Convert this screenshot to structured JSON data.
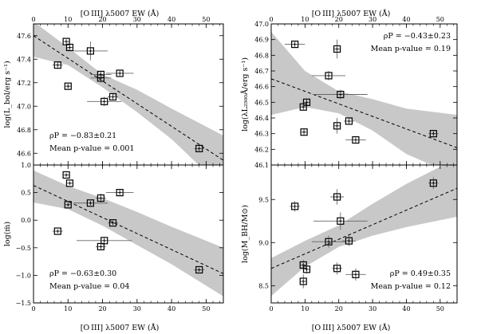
{
  "figure": {
    "top_xlabel": "[O III] λ5007 EW (Å)",
    "bottom_xlabel": "[O III] λ5007 EW (Å)"
  },
  "chart_data": [
    {
      "type": "scatter",
      "panel": "top-left",
      "ylabel": "log(L_bol/erg s⁻¹)",
      "xlim": [
        0,
        55
      ],
      "ylim": [
        46.5,
        47.7
      ],
      "xticks": [
        0,
        10,
        20,
        30,
        40,
        50
      ],
      "yticks": [
        46.6,
        46.8,
        47.0,
        47.2,
        47.4,
        47.6
      ],
      "ytick_labels": [
        "46.6",
        "46.8",
        "47.0",
        "47.2",
        "47.4",
        "47.6"
      ],
      "points": [
        {
          "x": 7,
          "y": 47.35,
          "xerr": 1.5,
          "yerr": 0.03
        },
        {
          "x": 9.5,
          "y": 47.55,
          "xerr": 1,
          "yerr": 0.02
        },
        {
          "x": 10.5,
          "y": 47.5,
          "xerr": 1,
          "yerr": 0.02
        },
        {
          "x": 10,
          "y": 47.17,
          "xerr": 1,
          "yerr": 0.02
        },
        {
          "x": 16.5,
          "y": 47.47,
          "xerr": 5,
          "yerr": 0.08
        },
        {
          "x": 19.5,
          "y": 47.24,
          "xerr": 3,
          "yerr": 0.04
        },
        {
          "x": 19.5,
          "y": 47.27,
          "xerr": 3,
          "yerr": 0.03
        },
        {
          "x": 20.5,
          "y": 47.04,
          "xerr": 5,
          "yerr": 0.04
        },
        {
          "x": 23,
          "y": 47.08,
          "xerr": 1.5,
          "yerr": 0.03
        },
        {
          "x": 25,
          "y": 47.28,
          "xerr": 4,
          "yerr": 0.03
        },
        {
          "x": 48,
          "y": 46.64,
          "xerr": 1.5,
          "yerr": 0.03
        }
      ],
      "fit": {
        "x": [
          0,
          55
        ],
        "y": [
          47.6,
          46.54
        ]
      },
      "band_upper": [
        [
          0,
          47.72
        ],
        [
          10,
          47.5
        ],
        [
          20,
          47.27
        ],
        [
          30,
          47.14
        ],
        [
          40,
          46.98
        ],
        [
          55,
          46.75
        ]
      ],
      "band_lower": [
        [
          0,
          47.42
        ],
        [
          10,
          47.35
        ],
        [
          20,
          47.16
        ],
        [
          30,
          46.95
        ],
        [
          40,
          46.72
        ],
        [
          55,
          46.3
        ]
      ],
      "annotation_rho": "ρP = −0.83±0.21",
      "annotation_p": "Mean p-value = 0.001",
      "annotation_pos": "bottom-left"
    },
    {
      "type": "scatter",
      "panel": "top-right",
      "ylabel": "log(λL₂₅₀₀Å/erg s⁻¹)",
      "xlim": [
        0,
        55
      ],
      "ylim": [
        46.1,
        47.0
      ],
      "xticks": [
        0,
        10,
        20,
        30,
        40,
        50
      ],
      "yticks": [
        46.1,
        46.2,
        46.3,
        46.4,
        46.5,
        46.6,
        46.7,
        46.8,
        46.9,
        47.0
      ],
      "ytick_labels": [
        "46.1",
        "46.2",
        "46.3",
        "46.4",
        "46.5",
        "46.6",
        "46.7",
        "46.8",
        "46.9",
        "47.0"
      ],
      "points": [
        {
          "x": 7,
          "y": 46.87,
          "xerr": 3,
          "yerr": 0.02
        },
        {
          "x": 19.5,
          "y": 46.84,
          "xerr": 1,
          "yerr": 0.06
        },
        {
          "x": 17,
          "y": 46.67,
          "xerr": 5,
          "yerr": 0.03
        },
        {
          "x": 10.5,
          "y": 46.5,
          "xerr": 1,
          "yerr": 0.02
        },
        {
          "x": 9.5,
          "y": 46.47,
          "xerr": 1,
          "yerr": 0.02
        },
        {
          "x": 9.7,
          "y": 46.31,
          "xerr": 1,
          "yerr": 0.02
        },
        {
          "x": 20.5,
          "y": 46.55,
          "xerr": 8,
          "yerr": 0.03
        },
        {
          "x": 19.5,
          "y": 46.35,
          "xerr": 1,
          "yerr": 0.05
        },
        {
          "x": 23,
          "y": 46.38,
          "xerr": 1.5,
          "yerr": 0.02
        },
        {
          "x": 25,
          "y": 46.26,
          "xerr": 3,
          "yerr": 0.02
        },
        {
          "x": 48,
          "y": 46.3,
          "xerr": 1.5,
          "yerr": 0.02
        }
      ],
      "fit": {
        "x": [
          0,
          55
        ],
        "y": [
          46.65,
          46.21
        ]
      },
      "band_upper": [
        [
          0,
          46.95
        ],
        [
          10,
          46.7
        ],
        [
          20,
          46.57
        ],
        [
          30,
          46.52
        ],
        [
          40,
          46.46
        ],
        [
          55,
          46.42
        ]
      ],
      "band_lower": [
        [
          0,
          46.42
        ],
        [
          10,
          46.47
        ],
        [
          20,
          46.43
        ],
        [
          30,
          46.32
        ],
        [
          40,
          46.17
        ],
        [
          55,
          46.03
        ]
      ],
      "annotation_rho": "ρP = −0.43±0.23",
      "annotation_p": "Mean p-value = 0.19",
      "annotation_pos": "top-right"
    },
    {
      "type": "scatter",
      "panel": "bottom-left",
      "ylabel": "log(ṁ)",
      "xlim": [
        0,
        55
      ],
      "ylim": [
        -1.5,
        1.0
      ],
      "xticks": [
        0,
        10,
        20,
        30,
        40,
        50
      ],
      "yticks": [
        -1.5,
        -1.0,
        -0.5,
        0.0,
        0.5,
        1.0
      ],
      "ytick_labels": [
        "−1.5",
        "−1.0",
        "−0.5",
        "0.0",
        "0.5",
        "1.0"
      ],
      "points": [
        {
          "x": 9.5,
          "y": 0.82,
          "xerr": 1,
          "yerr": 0.03
        },
        {
          "x": 10.5,
          "y": 0.67,
          "xerr": 1,
          "yerr": 0.03
        },
        {
          "x": 10,
          "y": 0.28,
          "xerr": 1,
          "yerr": 0.03
        },
        {
          "x": 19.5,
          "y": 0.4,
          "xerr": 1.5,
          "yerr": 0.08
        },
        {
          "x": 25,
          "y": 0.5,
          "xerr": 4,
          "yerr": 0.05
        },
        {
          "x": 16.5,
          "y": 0.31,
          "xerr": 5,
          "yerr": 0.04
        },
        {
          "x": 7,
          "y": -0.2,
          "xerr": 1.5,
          "yerr": 0.03
        },
        {
          "x": 23,
          "y": -0.05,
          "xerr": 1.5,
          "yerr": 0.04
        },
        {
          "x": 20.5,
          "y": -0.37,
          "xerr": 8,
          "yerr": 0.05
        },
        {
          "x": 19.5,
          "y": -0.48,
          "xerr": 1.5,
          "yerr": 0.06
        },
        {
          "x": 48,
          "y": -0.9,
          "xerr": 1.5,
          "yerr": 0.03
        }
      ],
      "fit": {
        "x": [
          0,
          55
        ],
        "y": [
          0.63,
          -0.97
        ]
      },
      "band_upper": [
        [
          0,
          0.9
        ],
        [
          10,
          0.62
        ],
        [
          20,
          0.4
        ],
        [
          30,
          0.15
        ],
        [
          40,
          -0.12
        ],
        [
          55,
          -0.5
        ]
      ],
      "band_lower": [
        [
          0,
          0.32
        ],
        [
          10,
          0.2
        ],
        [
          20,
          -0.1
        ],
        [
          30,
          -0.45
        ],
        [
          40,
          -0.8
        ],
        [
          55,
          -1.38
        ]
      ],
      "annotation_rho": "ρP = −0.63±0.30",
      "annotation_p": "Mean p-value = 0.04",
      "annotation_pos": "bottom-left"
    },
    {
      "type": "scatter",
      "panel": "bottom-right",
      "ylabel": "log(M_BH/M⊙)",
      "xlim": [
        0,
        55
      ],
      "ylim": [
        8.3,
        9.9
      ],
      "xticks": [
        0,
        10,
        20,
        30,
        40,
        50
      ],
      "yticks": [
        8.5,
        9.0,
        9.5
      ],
      "ytick_labels": [
        "8.5",
        "9.0",
        "9.5"
      ],
      "points": [
        {
          "x": 7,
          "y": 9.42,
          "xerr": 1.5,
          "yerr": 0.06
        },
        {
          "x": 19.5,
          "y": 9.53,
          "xerr": 2,
          "yerr": 0.09
        },
        {
          "x": 48,
          "y": 9.69,
          "xerr": 1.5,
          "yerr": 0.07
        },
        {
          "x": 20.5,
          "y": 9.25,
          "xerr": 8,
          "yerr": 0.1
        },
        {
          "x": 17,
          "y": 9.01,
          "xerr": 5,
          "yerr": 0.07
        },
        {
          "x": 23,
          "y": 9.02,
          "xerr": 2,
          "yerr": 0.06
        },
        {
          "x": 9.5,
          "y": 8.74,
          "xerr": 1,
          "yerr": 0.06
        },
        {
          "x": 10.5,
          "y": 8.69,
          "xerr": 1,
          "yerr": 0.05
        },
        {
          "x": 19.5,
          "y": 8.7,
          "xerr": 1.5,
          "yerr": 0.07
        },
        {
          "x": 9.5,
          "y": 8.55,
          "xerr": 1,
          "yerr": 0.08
        },
        {
          "x": 25,
          "y": 8.63,
          "xerr": 3,
          "yerr": 0.07
        }
      ],
      "fit": {
        "x": [
          0,
          55
        ],
        "y": [
          8.7,
          9.63
        ]
      },
      "band_upper": [
        [
          0,
          8.82
        ],
        [
          10,
          9.02
        ],
        [
          20,
          9.2
        ],
        [
          30,
          9.45
        ],
        [
          40,
          9.68
        ],
        [
          55,
          9.98
        ]
      ],
      "band_lower": [
        [
          0,
          8.38
        ],
        [
          10,
          8.72
        ],
        [
          20,
          8.95
        ],
        [
          30,
          9.08
        ],
        [
          40,
          9.18
        ],
        [
          55,
          9.3
        ]
      ],
      "annotation_rho": "ρP = 0.49±0.35",
      "annotation_p": "Mean p-value = 0.12",
      "annotation_pos": "bottom-right"
    }
  ]
}
